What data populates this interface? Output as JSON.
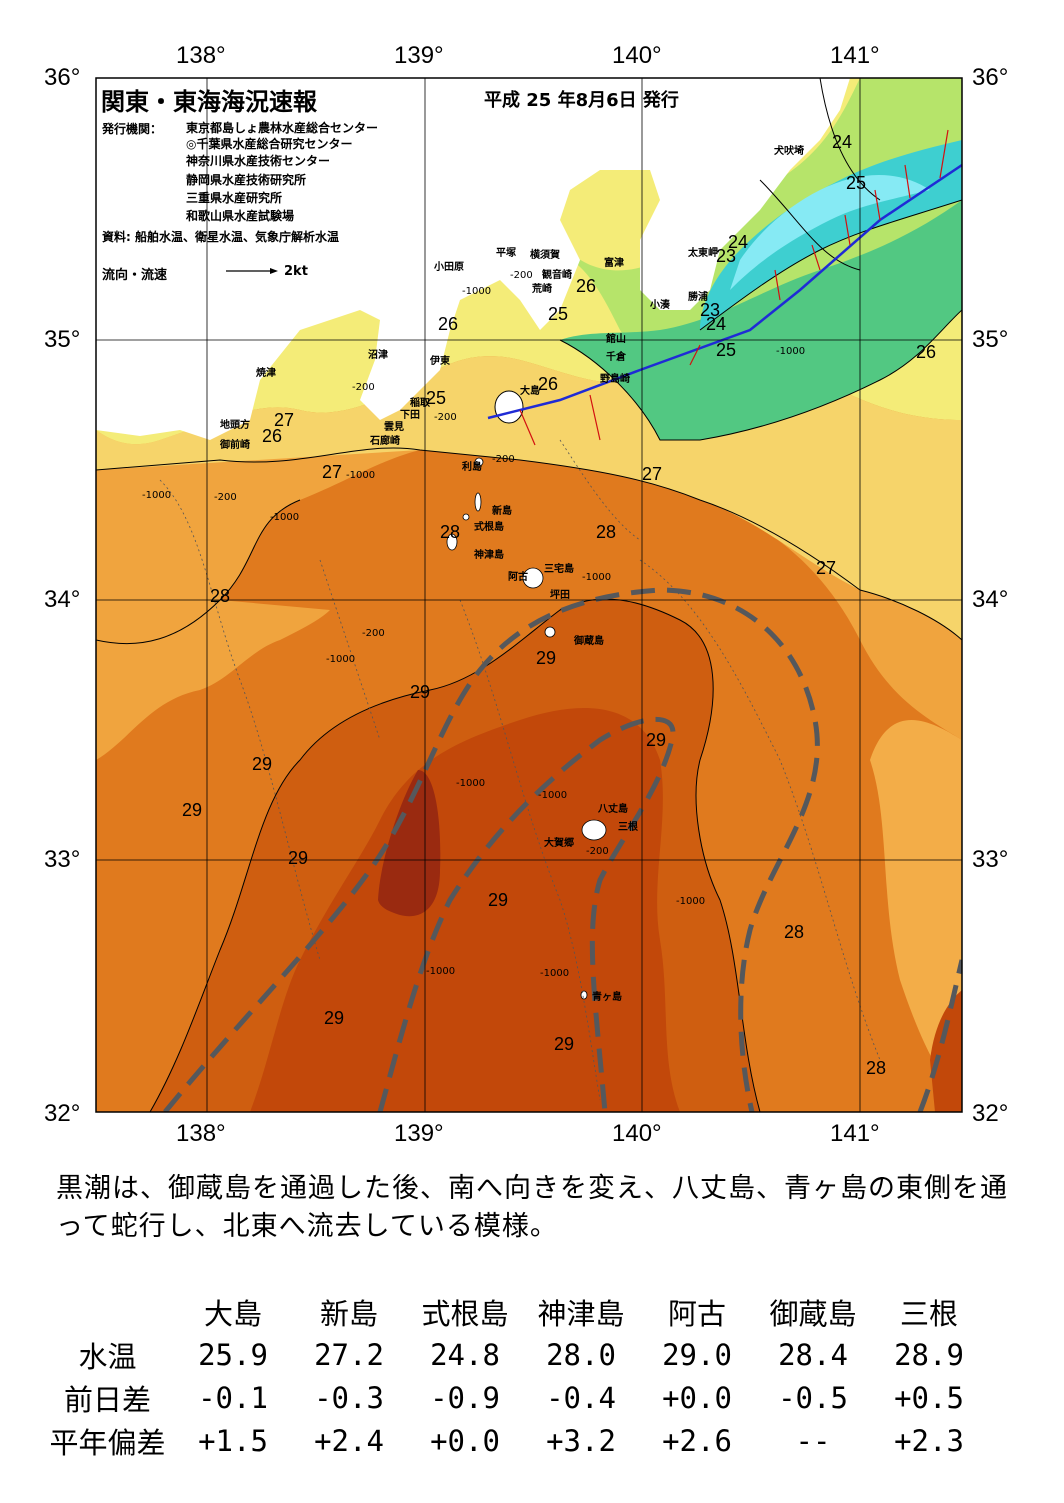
{
  "title": "関東・東海海況速報",
  "issue_date": "平成 25 年8月6日 発行",
  "publisher_label": "発行機関：",
  "publishers": [
    "東京都島しょ農林水産総合センター",
    "◎千葉県水産総合研究センター",
    "神奈川県水産技術センター",
    "静岡県水産技術研究所",
    "三重県水産研究所",
    "和歌山県水産試験場"
  ],
  "source": "資料: 船舶水温、衛星水温、気象庁解析水温",
  "flow_legend": {
    "label": "流向・流速",
    "scale": "2kt"
  },
  "axes": {
    "lon_labels": [
      "138°",
      "139°",
      "140°",
      "141°"
    ],
    "lat_labels": [
      "36°",
      "35°",
      "34°",
      "33°",
      "32°"
    ]
  },
  "temperature_labels": [
    "24",
    "25",
    "23",
    "24",
    "23",
    "24",
    "25",
    "26",
    "25",
    "26",
    "26",
    "25",
    "26",
    "27",
    "26",
    "27",
    "28",
    "27",
    "28",
    "28",
    "27",
    "29",
    "29",
    "29",
    "29",
    "29",
    "29",
    "29",
    "28",
    "29",
    "28",
    "29"
  ],
  "depth_labels": [
    "-200",
    "-1000",
    "-200",
    "-1000",
    "-1000",
    "-200",
    "-1000",
    "-200",
    "-1000",
    "-200",
    "-1000",
    "-1000",
    "-1000",
    "-200",
    "-1000",
    "-1000",
    "-200",
    "-1000",
    "-1000"
  ],
  "places": [
    "犬吠埼",
    "太東岬",
    "勝浦",
    "小湊",
    "富津",
    "横須賀",
    "観音崎",
    "平塚",
    "小田原",
    "荒崎",
    "館山",
    "千倉",
    "野島崎",
    "沼津",
    "伊東",
    "焼津",
    "稲取",
    "下田",
    "雲見",
    "石廊崎",
    "地頭方",
    "御前崎",
    "大島",
    "利島",
    "新島",
    "式根島",
    "神津島",
    "三宅島",
    "阿古",
    "坪田",
    "御蔵島",
    "八丈島",
    "三根",
    "大賀郷",
    "青ヶ島"
  ],
  "description": "黒潮は、御蔵島を通過した後、南へ向きを変え、八丈島、青ヶ島の東側を通って蛇行し、北東へ流去している模様。",
  "table": {
    "columns": [
      "大島",
      "新島",
      "式根島",
      "神津島",
      "阿古",
      "御蔵島",
      "三根"
    ],
    "rows": [
      {
        "label": "水温",
        "values": [
          "25.9",
          "27.2",
          "24.8",
          "28.0",
          "29.0",
          "28.4",
          "28.9"
        ]
      },
      {
        "label": "前日差",
        "values": [
          "-0.1",
          "-0.3",
          "-0.9",
          "-0.4",
          "+0.0",
          "-0.5",
          "+0.5"
        ]
      },
      {
        "label": "平年偏差",
        "values": [
          "+1.5",
          "+2.4",
          "+0.0",
          "+3.2",
          "+2.6",
          "--",
          "+2.3"
        ]
      }
    ]
  },
  "colors": {
    "t23": "#7fe8f2",
    "t24": "#3fd2d2",
    "t25": "#4ac87a",
    "t26": "#a6e26a",
    "t27": "#f2ee7a",
    "t28": "#f2b44a",
    "t29": "#de6c12",
    "t29b": "#c44a08",
    "t30": "#9a2a10",
    "current_axis": "#55585c",
    "ship_track": "#1f2bd6",
    "vector": "#d21010"
  }
}
